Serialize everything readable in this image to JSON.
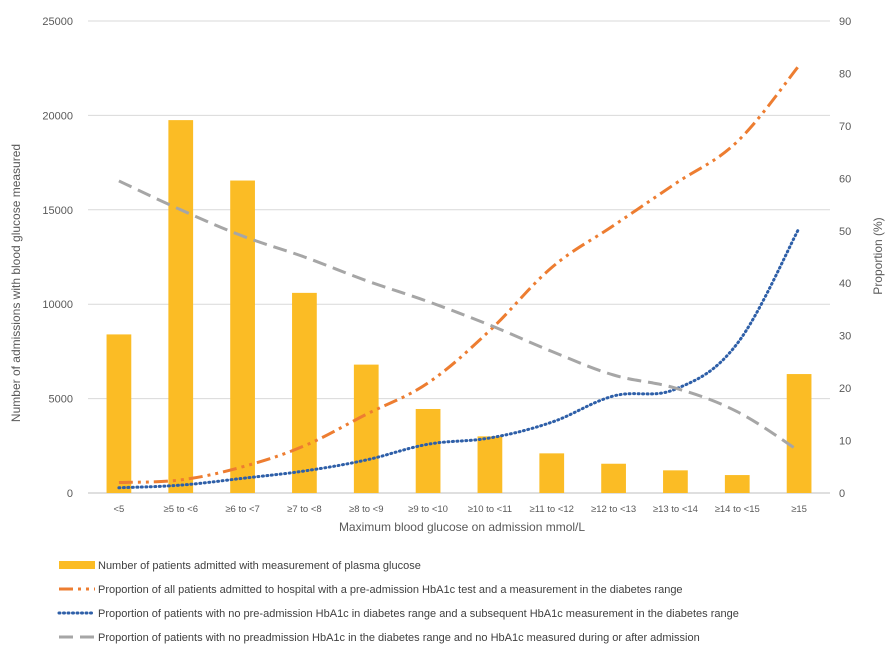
{
  "chart_data": {
    "type": "bar",
    "categories": [
      "<5",
      "≥5 to <6",
      "≥6 to <7",
      "≥7 to <8",
      "≥8 to <9",
      "≥9 to <10",
      "≥10 to <11",
      "≥11 to <12",
      "≥12 to <13",
      "≥13 to <14",
      "≥14 to <15",
      "≥15"
    ],
    "xlabel": "Maximum blood glucose on admission mmol/L",
    "ylabel": "Number of admissions with blood glucose measured",
    "y2label": "Proportion (%)",
    "ylim": [
      0,
      25000
    ],
    "y2lim": [
      0,
      90
    ],
    "yticks": [
      "0",
      "5000",
      "10000",
      "15000",
      "20000",
      "25000"
    ],
    "y2ticks": [
      "0",
      "10",
      "20",
      "30",
      "40",
      "50",
      "60",
      "70",
      "80",
      "90"
    ],
    "grid": true,
    "legend_position": "bottom",
    "series": [
      {
        "name": "Number of patients admitted with measurement of plasma glucose",
        "type": "bar",
        "axis": "left",
        "color": "#FBBC25",
        "values": [
          8400,
          19750,
          16550,
          10600,
          6800,
          4450,
          3000,
          2100,
          1550,
          1200,
          950,
          6300
        ]
      },
      {
        "name": "Proportion of all patients admitted to hospital with a pre-admission HbA1c test and a measurement in the diabetes range",
        "type": "line",
        "axis": "right",
        "style": "dash-dot-dot",
        "color": "#ED7D31",
        "values": [
          2,
          2.5,
          5,
          9,
          15,
          21,
          31,
          43,
          51,
          59,
          67,
          81.5
        ]
      },
      {
        "name": "Proportion of patients with no pre-admission HbA1c in diabetes range and a subsequent HbA1c measurement in the diabetes range",
        "type": "line",
        "axis": "right",
        "style": "dotted",
        "color": "#2E5FA8",
        "values": [
          1,
          1.5,
          2.8,
          4.2,
          6.3,
          9.3,
          10.5,
          13.5,
          18.5,
          19.8,
          28.5,
          50.5
        ]
      },
      {
        "name": "Proportion of patients with no preadmission HbA1c in the diabetes range and no HbA1c measured during or after admission",
        "type": "line",
        "axis": "right",
        "style": "dashed",
        "color": "#A6A6A6",
        "values": [
          59.5,
          54,
          49,
          45,
          40.5,
          36.5,
          32,
          27,
          22.5,
          20,
          15.5,
          8
        ]
      }
    ]
  }
}
